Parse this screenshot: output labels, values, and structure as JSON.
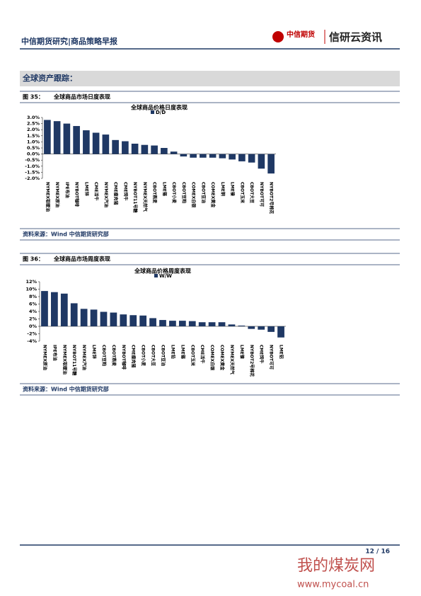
{
  "header": {
    "title": "中信期货研究|商品策略早报",
    "logo_text": "中信期货",
    "brand": "信研云资讯"
  },
  "section": {
    "title": "全球资产跟踪："
  },
  "figures": [
    {
      "number": "图 35：",
      "caption": "全球商品市场日度表现",
      "source": "资料来源：Wind 中信期货研究部"
    },
    {
      "number": "图 36：",
      "caption": "全球商品市场周度表现",
      "source": "资料来源：Wind 中信期货研究部"
    }
  ],
  "chart_data": [
    {
      "type": "bar",
      "title": "全球商品价格日度表现",
      "color": "#1f3864",
      "series": [
        {
          "name": "D/D",
          "color": "#1f3864",
          "values": [
            2.8,
            2.7,
            2.5,
            2.3,
            1.95,
            1.75,
            1.6,
            1.15,
            1.05,
            0.85,
            0.75,
            0.7,
            0.5,
            0.2,
            -0.2,
            -0.3,
            -0.3,
            -0.3,
            -0.35,
            -0.45,
            -0.6,
            -0.7,
            -1.2,
            -1.6
          ]
        }
      ],
      "categories": [
        "NYMEX取暖油",
        "NYMEX原油",
        "IPE布油",
        "NYBOT咖啡",
        "LME锌",
        "CME活牛",
        "NYMEX汽油",
        "CME瘦肉猪",
        "CME饲牛",
        "NYBOT11号糖",
        "NYMEX天然气",
        "CBOT燕麦",
        "LME锡",
        "CBOT小麦",
        "CBOT豆粕",
        "COMEX白银",
        "CBOT豆油",
        "COMEX黄金",
        "LME铜",
        "LME镍",
        "CBOT玉米",
        "CBOT大豆",
        "NYBOT可可",
        "NYBOT2号棉花"
      ],
      "ylim": [
        -2.0,
        3.0
      ],
      "yticks": [
        {
          "value": 3.0,
          "label": "3.0%"
        },
        {
          "value": 2.5,
          "label": "2.5%"
        },
        {
          "value": 2.0,
          "label": "2.0%"
        },
        {
          "value": 1.5,
          "label": "1.5%"
        },
        {
          "value": 1.0,
          "label": "1.0%"
        },
        {
          "value": 0.5,
          "label": "0.5%"
        },
        {
          "value": 0.0,
          "label": "0.0%"
        },
        {
          "value": -0.5,
          "label": "-0.5%"
        },
        {
          "value": -1.0,
          "label": "-1.0%"
        },
        {
          "value": -1.5,
          "label": "-1.5%"
        },
        {
          "value": -2.0,
          "label": "-2.0%"
        }
      ]
    },
    {
      "type": "bar",
      "title": "全球商品价格周度表现",
      "color": "#1f3864",
      "series": [
        {
          "name": "W/W",
          "color": "#1f3864",
          "values": [
            9.5,
            9.2,
            8.8,
            6.2,
            4.7,
            4.5,
            3.9,
            3.7,
            3.2,
            3.0,
            2.9,
            2.2,
            1.7,
            1.5,
            1.5,
            1.4,
            1.1,
            1.1,
            1.1,
            0.5,
            0.2,
            -0.7,
            -0.9,
            -1.5,
            -3.0
          ]
        }
      ],
      "categories": [
        "NYMEX原油",
        "IPE布油",
        "NYMEX取暖油",
        "NYBOT11号糖",
        "NYMEX汽油",
        "LME锌",
        "CBOT豆粕",
        "CBOT燕麦",
        "NYBOT咖啡",
        "CME瘦肉猪",
        "CBOT小麦",
        "CBOT大豆",
        "CBOT豆油",
        "LME铅",
        "LME锡",
        "CBOT玉米",
        "CME活牛",
        "COMEX白银",
        "COMEX黄金",
        "NYMEX天然气",
        "LME镍",
        "NYBOT2号棉花",
        "CME饲牛",
        "NYBOT可可",
        "LME铝"
      ],
      "ylim": [
        -4,
        12
      ],
      "yticks": [
        {
          "value": 12,
          "label": "12%"
        },
        {
          "value": 10,
          "label": "10%"
        },
        {
          "value": 8,
          "label": "8%"
        },
        {
          "value": 6,
          "label": "6%"
        },
        {
          "value": 4,
          "label": "4%"
        },
        {
          "value": 2,
          "label": "2%"
        },
        {
          "value": 0,
          "label": "0%"
        },
        {
          "value": -2,
          "label": "-2%"
        },
        {
          "value": -4,
          "label": "-4%"
        }
      ]
    }
  ],
  "footer": {
    "page": "12 / 16",
    "watermark": "我的煤炭网",
    "watermark_url": "www.mycoal.cn"
  }
}
